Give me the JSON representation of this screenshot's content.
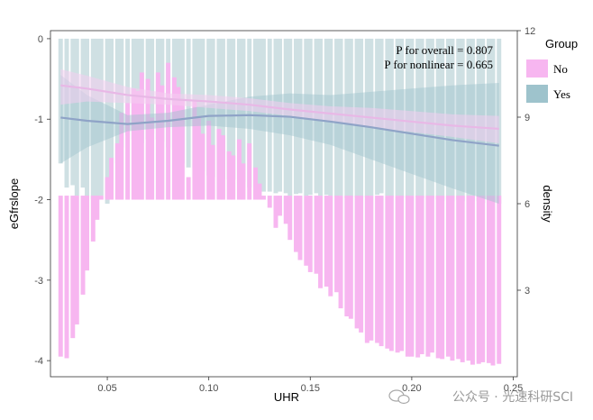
{
  "chart_data": {
    "type": "bar",
    "xlabel": "UHR",
    "ylabel": "eGfrslope",
    "y2label": "density",
    "xlim": [
      0.022,
      0.252
    ],
    "ylim": [
      -4.2,
      0.1
    ],
    "y2lim": [
      0,
      12
    ],
    "xticks": [
      0.05,
      0.1,
      0.15,
      0.2,
      0.25
    ],
    "xtick_labels": [
      "0.05",
      "0.10",
      "0.15",
      "0.20",
      "0.25"
    ],
    "yticks": [
      0,
      -1,
      -2,
      -3,
      -4
    ],
    "ytick_labels": [
      "0",
      "-1",
      "-2",
      "-3",
      "-4"
    ],
    "y2ticks": [
      3,
      6,
      9,
      12
    ],
    "y2tick_labels": [
      "3",
      "6",
      "9",
      "12"
    ],
    "annotations": [
      "P for overall = 0.807",
      "P for nonlinear = 0.665"
    ],
    "legend": {
      "title": "Group",
      "position": "right",
      "items": [
        {
          "label": "No",
          "color": "#f7b6f0"
        },
        {
          "label": "Yes",
          "color": "#9ec3cc"
        }
      ]
    },
    "colors": {
      "no": "#f7b6f0",
      "yes_bar": "#cfe0e3",
      "yes_line": "#8fa3c7",
      "no_line": "#e8b8e6",
      "band_yes": "#9ec3cc",
      "band_no": "#f4cdf0"
    },
    "bar_width": 0.0022,
    "series": [
      {
        "name": "No",
        "x": [
          0.027,
          0.03,
          0.033,
          0.035,
          0.038,
          0.04,
          0.043,
          0.045,
          0.047,
          0.05,
          0.052,
          0.055,
          0.057,
          0.06,
          0.063,
          0.065,
          0.067,
          0.07,
          0.072,
          0.075,
          0.077,
          0.08,
          0.083,
          0.085,
          0.087,
          0.09,
          0.093,
          0.095,
          0.097,
          0.1,
          0.102,
          0.105,
          0.107,
          0.11,
          0.112,
          0.115,
          0.117,
          0.12,
          0.123,
          0.125,
          0.127,
          0.13,
          0.133,
          0.135,
          0.138,
          0.14,
          0.143,
          0.145,
          0.148,
          0.15,
          0.153,
          0.155,
          0.158,
          0.16,
          0.163,
          0.165,
          0.168,
          0.17,
          0.173,
          0.175,
          0.178,
          0.18,
          0.183,
          0.185,
          0.188,
          0.19,
          0.193,
          0.195,
          0.198,
          0.2,
          0.203,
          0.205,
          0.208,
          0.21,
          0.213,
          0.215,
          0.218,
          0.22,
          0.223,
          0.225,
          0.228,
          0.23,
          0.233,
          0.235,
          0.238,
          0.24,
          0.243
        ],
        "values": [
          -3.95,
          -3.97,
          -3.72,
          -3.55,
          -3.18,
          -2.88,
          -2.52,
          -2.25,
          -2.0,
          -1.72,
          -1.48,
          -1.3,
          -0.92,
          -0.8,
          -0.62,
          -0.65,
          -0.42,
          -0.5,
          -0.98,
          -0.42,
          -0.58,
          -0.3,
          -0.48,
          -0.6,
          -0.75,
          -1.72,
          -0.78,
          -0.98,
          -1.18,
          -1.02,
          -1.32,
          -1.12,
          -1.2,
          -1.4,
          -1.45,
          -1.25,
          -1.55,
          -1.3,
          -1.6,
          -1.8,
          -2.0,
          -2.1,
          -2.35,
          -2.2,
          -2.3,
          -2.5,
          -2.65,
          -2.75,
          -2.82,
          -2.9,
          -2.92,
          -3.1,
          -3.08,
          -3.2,
          -3.15,
          -3.35,
          -3.45,
          -3.48,
          -3.6,
          -3.65,
          -3.78,
          -3.75,
          -3.78,
          -3.82,
          -3.85,
          -3.88,
          -3.9,
          -3.88,
          -3.95,
          -3.95,
          -3.96,
          -3.92,
          -3.95,
          -3.9,
          -3.97,
          -3.98,
          -3.95,
          -4.0,
          -3.98,
          -4.02,
          -4.0,
          -4.05,
          -4.04,
          -4.02,
          -4.03,
          -4.06,
          -4.04
        ]
      },
      {
        "name": "Yes",
        "x": [
          0.027,
          0.03,
          0.033,
          0.035,
          0.038,
          0.04,
          0.043,
          0.045,
          0.047,
          0.05,
          0.052,
          0.055,
          0.057,
          0.06,
          0.063,
          0.065,
          0.067,
          0.07,
          0.072,
          0.075,
          0.077,
          0.08,
          0.083,
          0.085,
          0.087,
          0.09,
          0.093,
          0.095,
          0.097,
          0.1,
          0.102,
          0.105,
          0.107,
          0.11,
          0.112,
          0.115,
          0.117,
          0.12,
          0.123,
          0.125,
          0.127,
          0.13,
          0.133,
          0.135,
          0.138,
          0.14,
          0.143,
          0.145,
          0.148,
          0.15,
          0.153,
          0.155,
          0.158,
          0.16,
          0.163,
          0.165,
          0.168,
          0.17,
          0.173,
          0.175,
          0.178,
          0.18,
          0.183,
          0.185,
          0.188,
          0.19,
          0.193,
          0.195,
          0.198,
          0.2,
          0.203,
          0.205,
          0.208,
          0.21,
          0.213,
          0.215,
          0.218,
          0.22,
          0.223,
          0.225,
          0.228,
          0.23,
          0.233,
          0.235,
          0.238,
          0.24,
          0.243
        ],
        "values": [
          -1.55,
          -1.85,
          -1.82,
          -1.95,
          -1.85,
          -2.02,
          -2.0,
          -1.98,
          -1.95,
          -2.05,
          -1.85,
          -1.55,
          -1.35,
          -1.2,
          -1.25,
          -1.1,
          -1.3,
          -1.25,
          -1.18,
          -1.25,
          -1.28,
          -1.35,
          -1.38,
          -1.5,
          -1.55,
          -1.6,
          -1.6,
          -1.65,
          -1.65,
          -1.7,
          -1.72,
          -1.72,
          -1.75,
          -1.75,
          -1.75,
          -1.8,
          -1.78,
          -1.85,
          -1.85,
          -1.88,
          -1.9,
          -1.9,
          -1.92,
          -1.9,
          -1.92,
          -1.95,
          -1.93,
          -1.92,
          -1.95,
          -1.94,
          -1.92,
          -1.95,
          -1.94,
          -1.95,
          -1.96,
          -1.95,
          -1.98,
          -1.96,
          -1.97,
          -1.98,
          -1.97,
          -1.95,
          -1.94,
          -1.92,
          -1.95,
          -1.96,
          -1.95,
          -1.97,
          -1.98,
          -1.95,
          -1.97,
          -1.98,
          -2.0,
          -1.98,
          -2.0,
          -2.02,
          -2.0,
          -2.02,
          -2.0,
          -2.02,
          -2.03,
          -2.02,
          -2.02,
          -2.04,
          -2.03,
          -2.02,
          -2.05
        ]
      },
      {
        "name": "Yes fit",
        "x": [
          0.027,
          0.04,
          0.06,
          0.08,
          0.1,
          0.12,
          0.14,
          0.16,
          0.18,
          0.2,
          0.22,
          0.243
        ],
        "values": [
          -0.98,
          -1.02,
          -1.06,
          -1.02,
          -0.96,
          -0.95,
          -0.97,
          -1.03,
          -1.1,
          -1.18,
          -1.26,
          -1.33
        ],
        "lower": [
          -1.55,
          -1.35,
          -1.15,
          -1.1,
          -1.08,
          -1.12,
          -1.2,
          -1.32,
          -1.5,
          -1.68,
          -1.86,
          -2.05
        ],
        "upper": [
          -0.45,
          -0.7,
          -0.95,
          -0.92,
          -0.82,
          -0.72,
          -0.68,
          -0.7,
          -0.66,
          -0.62,
          -0.58,
          -0.55
        ]
      },
      {
        "name": "No fit",
        "x": [
          0.027,
          0.04,
          0.06,
          0.08,
          0.1,
          0.12,
          0.14,
          0.16,
          0.18,
          0.2,
          0.22,
          0.243
        ],
        "values": [
          -0.58,
          -0.62,
          -0.7,
          -0.75,
          -0.78,
          -0.82,
          -0.88,
          -0.93,
          -0.98,
          -1.03,
          -1.08,
          -1.12
        ],
        "lower": [
          -0.82,
          -0.78,
          -0.8,
          -0.82,
          -0.86,
          -0.9,
          -0.96,
          -1.02,
          -1.1,
          -1.16,
          -1.22,
          -1.3
        ],
        "upper": [
          -0.38,
          -0.46,
          -0.6,
          -0.68,
          -0.7,
          -0.74,
          -0.8,
          -0.84,
          -0.86,
          -0.9,
          -0.94,
          -0.96
        ]
      }
    ]
  },
  "watermark": "公众号 · 光速科研SCI"
}
